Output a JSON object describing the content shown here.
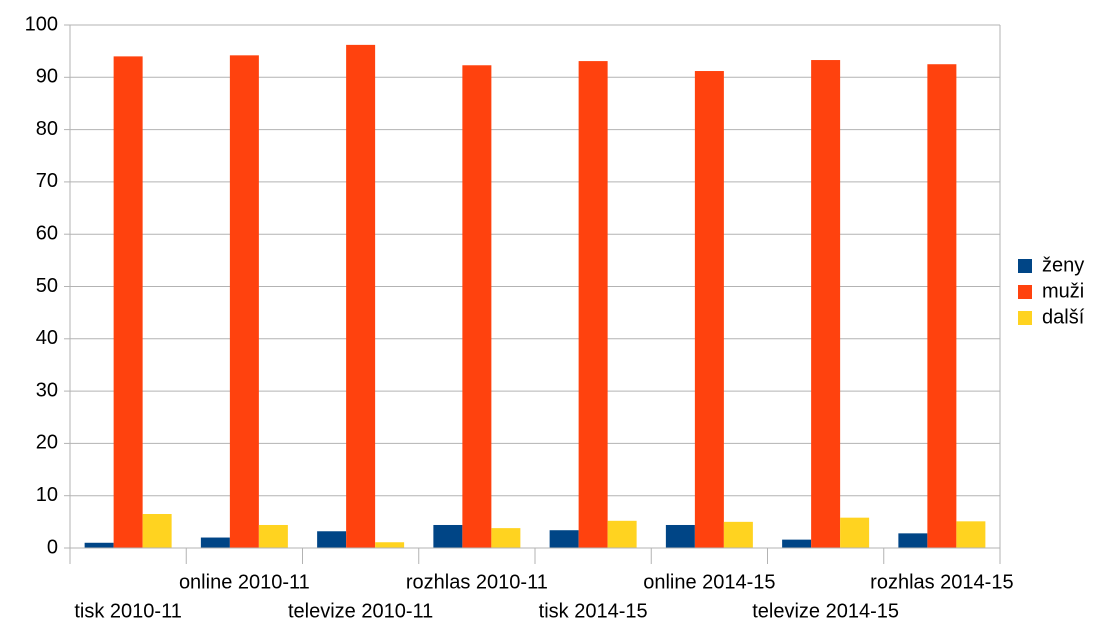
{
  "chart_data": {
    "type": "bar",
    "categories": [
      "tisk 2010-11",
      "online 2010-11",
      "televize 2010-11",
      "rozhlas 2010-11",
      "tisk 2014-15",
      "online 2014-15",
      "televize 2014-15",
      "rozhlas 2014-15"
    ],
    "series": [
      {
        "name": "ženy",
        "color": "#004586",
        "values": [
          1.0,
          2.0,
          3.2,
          4.4,
          3.4,
          4.4,
          1.6,
          2.8
        ]
      },
      {
        "name": "muži",
        "color": "#ff420e",
        "values": [
          94.0,
          94.2,
          96.2,
          92.3,
          93.1,
          91.2,
          93.3,
          92.5
        ]
      },
      {
        "name": "další",
        "color": "#ffd320",
        "values": [
          6.5,
          4.4,
          1.1,
          3.8,
          5.2,
          5.0,
          5.8,
          5.1
        ]
      }
    ],
    "ylim": [
      0,
      100
    ],
    "yticks": [
      0,
      10,
      20,
      30,
      40,
      50,
      60,
      70,
      80,
      90,
      100
    ],
    "grid": true,
    "legend": "right"
  }
}
